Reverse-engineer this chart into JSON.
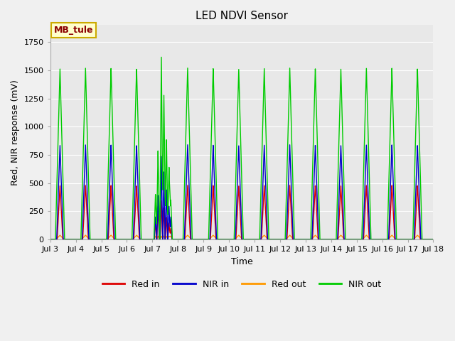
{
  "title": "LED NDVI Sensor",
  "xlabel": "Time",
  "ylabel": "Red, NIR response (mV)",
  "annotation": "MB_tule",
  "ylim": [
    0,
    1900
  ],
  "background_color": "#f0f0f0",
  "plot_bg_color": "#e8e8e8",
  "grid_color": "#ffffff",
  "legend_entries": [
    "Red in",
    "NIR in",
    "Red out",
    "NIR out"
  ],
  "legend_colors": [
    "#dd0000",
    "#0000cc",
    "#ff9900",
    "#00cc00"
  ],
  "title_fontsize": 11,
  "axis_fontsize": 9,
  "tick_fontsize": 8,
  "red_in_peak": 480,
  "nir_in_peak": 840,
  "red_out_peak": 38,
  "nir_out_peak": 1520,
  "nir_out_peak_anomaly": 1640,
  "x_ticks": [
    3,
    4,
    5,
    6,
    7,
    8,
    9,
    10,
    11,
    12,
    13,
    14,
    15,
    16,
    17,
    18
  ],
  "x_tick_labels": [
    "Jul 3",
    "Jul 4",
    "Jul 5",
    "Jul 6",
    "Jul 7",
    "Jul 8",
    "Jul 9",
    "Jul 10",
    "Jul 11",
    "Jul 12",
    "Jul 13",
    "Jul 14",
    "Jul 15",
    "Jul 16",
    "Jul 17",
    "Jul 18"
  ]
}
